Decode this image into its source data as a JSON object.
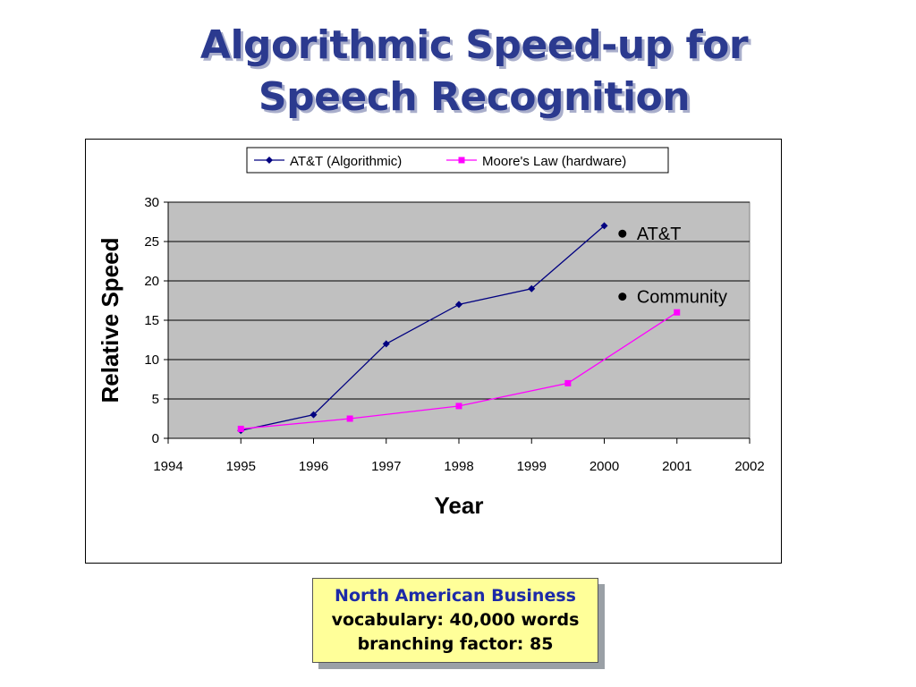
{
  "title": {
    "line1": "Algorithmic Speed-up for",
    "line2": "Speech Recognition"
  },
  "colors": {
    "title": "#2b3a8f",
    "att_series": "#000080",
    "moore_series": "#ff00ff",
    "plot_bg": "#c0c0c0",
    "info_bg": "#ffff99",
    "info_heading": "#1c2aa8"
  },
  "info_box": {
    "line1": "North American Business",
    "line2": "vocabulary: 40,000 words",
    "line3": "branching factor: 85"
  },
  "chart_data": {
    "type": "line",
    "title": "",
    "xlabel": "Year",
    "ylabel": "Relative Speed",
    "xlim": [
      1994,
      2002
    ],
    "ylim": [
      0,
      30
    ],
    "x_ticks": [
      1994,
      1995,
      1996,
      1997,
      1998,
      1999,
      2000,
      2001,
      2002
    ],
    "y_ticks": [
      0,
      5,
      10,
      15,
      20,
      25,
      30
    ],
    "grid": "horizontal",
    "legend_position": "top-center",
    "series": [
      {
        "name": "AT&T (Algorithmic)",
        "color": "#000080",
        "marker": "diamond",
        "x": [
          1995,
          1996,
          1997,
          1998,
          1999,
          2000
        ],
        "y": [
          1,
          3,
          12,
          17,
          19,
          27
        ]
      },
      {
        "name": "Moore's Law (hardware)",
        "color": "#ff00ff",
        "marker": "square",
        "x": [
          1995,
          1996.5,
          1998,
          1999.5,
          2001
        ],
        "y": [
          1.2,
          2.5,
          4.1,
          7,
          16
        ]
      }
    ],
    "annotations": [
      {
        "text": "AT&T",
        "x": 2000.25,
        "y": 26
      },
      {
        "text": "Community",
        "x": 2000.25,
        "y": 18
      }
    ]
  }
}
